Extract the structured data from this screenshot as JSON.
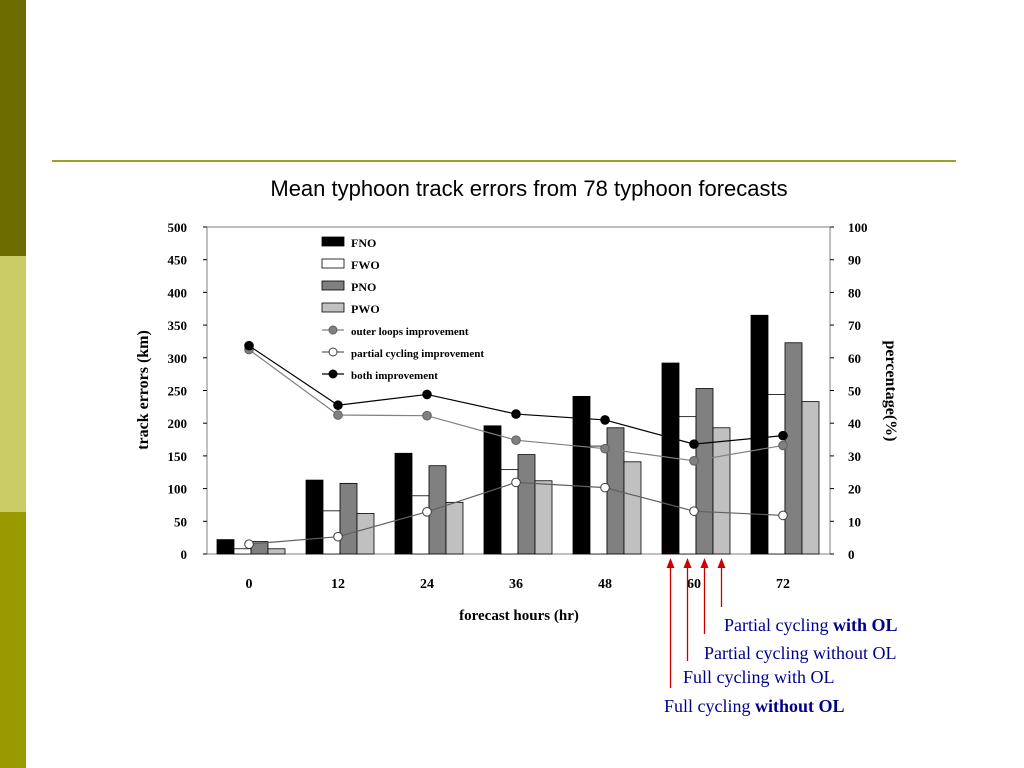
{
  "colors": {
    "sidebar_dark": "#6b6b00",
    "sidebar_light": "#cccc66",
    "sidebar_mid": "#999900",
    "rule": "#a0a020",
    "annotation": "#cc0000",
    "annotation_text": "#00008b"
  },
  "chart_data": {
    "type": "bar",
    "title": "Mean typhoon track errors from 78 typhoon forecasts",
    "xlabel": "forecast hours (hr)",
    "ylabel": "track errors (km)",
    "y2label": "percentage(%)",
    "categories": [
      "0",
      "12",
      "24",
      "36",
      "48",
      "60",
      "72"
    ],
    "ylim": [
      0,
      500
    ],
    "y2lim": [
      0,
      100
    ],
    "yticks": [
      "0",
      "50",
      "100",
      "150",
      "200",
      "250",
      "300",
      "350",
      "400",
      "450",
      "500"
    ],
    "y2ticks": [
      "0",
      "10",
      "20",
      "30",
      "40",
      "50",
      "60",
      "70",
      "80",
      "90",
      "100"
    ],
    "grid": false,
    "legend_position": "top-left",
    "series": [
      {
        "name": "FNO",
        "kind": "bar",
        "color": "#000000",
        "values": [
          22,
          113,
          154,
          196,
          241,
          292,
          365
        ]
      },
      {
        "name": "FWO",
        "kind": "bar",
        "color": "#ffffff",
        "values": [
          8,
          66,
          89,
          129,
          165,
          210,
          244
        ]
      },
      {
        "name": "PNO",
        "kind": "bar",
        "color": "#808080",
        "values": [
          19,
          108,
          135,
          152,
          193,
          253,
          323
        ]
      },
      {
        "name": "PWO",
        "kind": "bar",
        "color": "#c0c0c0",
        "values": [
          8,
          62,
          79,
          112,
          141,
          193,
          233
        ]
      },
      {
        "name": "outer loops improvement",
        "kind": "line",
        "axis": "right",
        "marker": "filled-gray",
        "values": [
          62.5,
          42.5,
          42.3,
          34.8,
          32.2,
          28.5,
          33.2
        ]
      },
      {
        "name": "partial cycling improvement",
        "kind": "line",
        "axis": "right",
        "marker": "open",
        "values": [
          3.0,
          5.3,
          12.9,
          21.9,
          20.3,
          13.1,
          11.8
        ]
      },
      {
        "name": "both improvement",
        "kind": "line",
        "axis": "right",
        "marker": "filled-black",
        "values": [
          63.7,
          45.5,
          48.8,
          42.8,
          41.0,
          33.6,
          36.2
        ]
      }
    ],
    "annotations": [
      {
        "prefix": "Partial cycling ",
        "bold": "with OL",
        "target_series": "PWO",
        "target_category": "60"
      },
      {
        "prefix": "Partial cycling without  OL",
        "bold": "",
        "target_series": "PNO",
        "target_category": "60"
      },
      {
        "prefix": "Full cycling with  OL",
        "bold": "",
        "target_series": "FWO",
        "target_category": "60"
      },
      {
        "prefix": "Full cycling ",
        "bold": "without OL",
        "target_series": "FNO",
        "target_category": "60"
      }
    ]
  }
}
